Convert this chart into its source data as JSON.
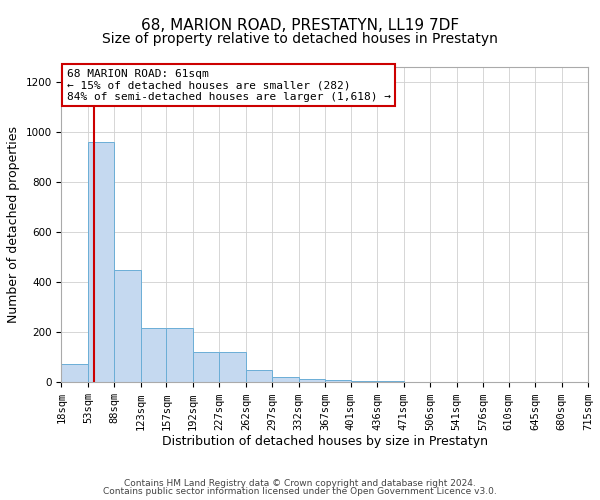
{
  "title": "68, MARION ROAD, PRESTATYN, LL19 7DF",
  "subtitle": "Size of property relative to detached houses in Prestatyn",
  "xlabel": "Distribution of detached houses by size in Prestatyn",
  "ylabel": "Number of detached properties",
  "bin_edges": [
    18,
    53,
    88,
    123,
    157,
    192,
    227,
    262,
    297,
    332,
    367,
    401,
    436,
    471,
    506,
    541,
    576,
    610,
    645,
    680,
    715
  ],
  "bar_heights": [
    75,
    960,
    450,
    215,
    215,
    120,
    120,
    50,
    20,
    15,
    10,
    5,
    5,
    3,
    3,
    2,
    2,
    1,
    1,
    1
  ],
  "bar_color": "#c5d9f0",
  "bar_edge_color": "#6baed6",
  "property_size": 61,
  "red_line_color": "#cc0000",
  "annotation_text": "68 MARION ROAD: 61sqm\n← 15% of detached houses are smaller (282)\n84% of semi-detached houses are larger (1,618) →",
  "annotation_box_color": "#ffffff",
  "annotation_box_edge_color": "#cc0000",
  "ylim": [
    0,
    1260
  ],
  "yticks": [
    0,
    200,
    400,
    600,
    800,
    1000,
    1200
  ],
  "footer_line1": "Contains HM Land Registry data © Crown copyright and database right 2024.",
  "footer_line2": "Contains public sector information licensed under the Open Government Licence v3.0.",
  "title_fontsize": 11,
  "subtitle_fontsize": 10,
  "axis_label_fontsize": 9,
  "tick_fontsize": 7.5,
  "annot_fontsize": 8
}
